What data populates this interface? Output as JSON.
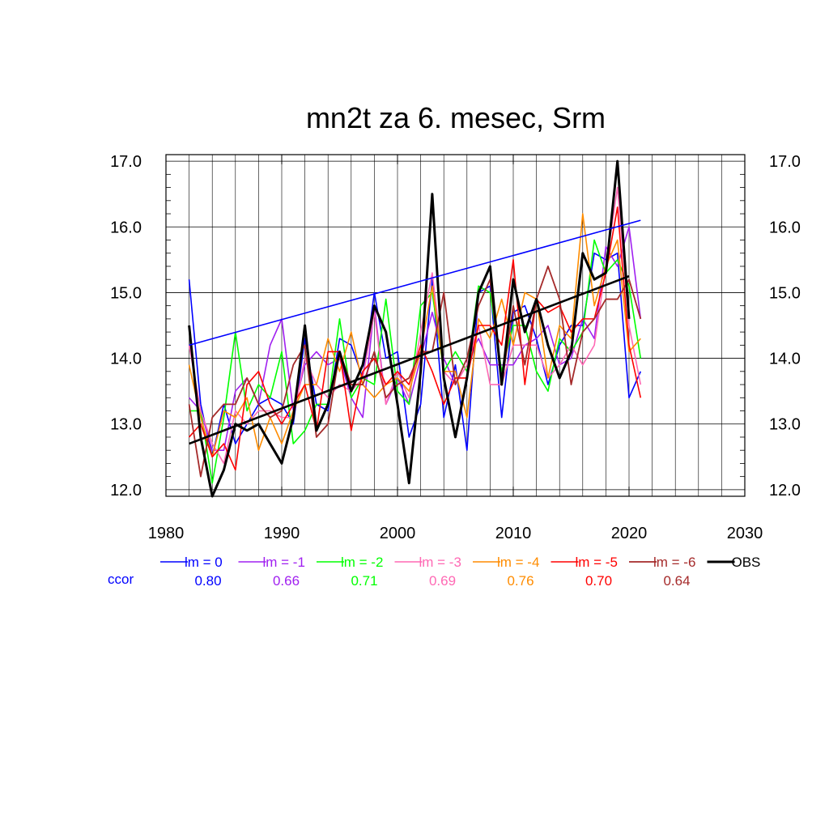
{
  "chart_data": {
    "type": "line",
    "title": "mn2t za 6. mesec, Srm",
    "xlim": [
      1980,
      2030
    ],
    "ylim": [
      11.9,
      17.1
    ],
    "xticks": [
      1980,
      1990,
      2000,
      2010,
      2020,
      2030
    ],
    "xtick_labels": [
      "1980",
      "1990",
      "2000",
      "2010",
      "2020",
      "2030"
    ],
    "yticks": [
      12,
      13,
      14,
      15,
      16,
      17
    ],
    "ytick_labels": [
      "12.0",
      "13.0",
      "14.0",
      "15.0",
      "16.0",
      "17.0"
    ],
    "grid": true,
    "x": [
      1982,
      1983,
      1984,
      1985,
      1986,
      1987,
      1988,
      1989,
      1990,
      1991,
      1992,
      1993,
      1994,
      1995,
      1996,
      1997,
      1998,
      1999,
      2000,
      2001,
      2002,
      2003,
      2004,
      2005,
      2006,
      2007,
      2008,
      2009,
      2010,
      2011,
      2012,
      2013,
      2014,
      2015,
      2016,
      2017,
      2018,
      2019,
      2020,
      2021
    ],
    "series": [
      {
        "name": "lm = 0",
        "color": "#0000ff",
        "width": 1.6,
        "values": [
          15.2,
          13.3,
          12.5,
          13.3,
          12.7,
          13.0,
          13.3,
          13.4,
          13.3,
          13.0,
          14.3,
          13.3,
          13.2,
          14.3,
          14.2,
          13.7,
          15.0,
          14.0,
          14.1,
          12.8,
          13.3,
          15.2,
          13.1,
          13.9,
          12.6,
          15.0,
          15.1,
          13.1,
          14.7,
          14.8,
          14.3,
          13.6,
          14.2,
          14.5,
          14.5,
          15.6,
          15.5,
          15.6,
          13.4,
          13.8
        ]
      },
      {
        "name": "lm = -1",
        "color": "#a020f0",
        "width": 1.6,
        "values": [
          13.4,
          13.2,
          12.6,
          12.6,
          13.5,
          13.7,
          13.3,
          14.2,
          14.6,
          13.2,
          13.9,
          14.1,
          13.9,
          14.0,
          13.4,
          13.1,
          14.8,
          13.3,
          13.7,
          13.3,
          14.0,
          14.7,
          14.0,
          13.6,
          14.0,
          14.3,
          13.9,
          13.9,
          13.9,
          14.2,
          14.3,
          14.5,
          13.9,
          14.0,
          14.6,
          14.3,
          15.7,
          15.4,
          16.0,
          14.6
        ]
      },
      {
        "name": "lm = -2",
        "color": "#00ff00",
        "width": 1.6,
        "values": [
          13.2,
          13.2,
          12.1,
          13.1,
          14.4,
          13.2,
          13.6,
          13.4,
          14.1,
          12.7,
          12.9,
          13.3,
          13.3,
          14.6,
          13.4,
          13.7,
          13.6,
          14.9,
          13.5,
          13.3,
          14.8,
          15.0,
          13.8,
          14.1,
          13.8,
          15.1,
          15.0,
          13.8,
          14.5,
          14.5,
          13.8,
          13.5,
          14.3,
          14.1,
          14.4,
          15.8,
          15.3,
          15.5,
          15.1,
          14.0
        ]
      },
      {
        "name": "lm = -3",
        "color": "#ff69b4",
        "width": 1.6,
        "values": [
          14.2,
          13.2,
          12.7,
          12.4,
          13.2,
          13.0,
          13.2,
          13.2,
          13.1,
          13.1,
          14.0,
          13.6,
          13.4,
          13.6,
          13.5,
          13.7,
          14.7,
          13.3,
          13.8,
          13.4,
          14.4,
          15.3,
          13.8,
          13.6,
          13.9,
          14.5,
          13.6,
          13.6,
          14.2,
          14.2,
          14.2,
          13.7,
          13.9,
          14.2,
          13.9,
          14.2,
          15.4,
          16.6,
          14.5,
          13.6
        ]
      },
      {
        "name": "lm = -4",
        "color": "#ff8c00",
        "width": 1.6,
        "values": [
          13.9,
          13.1,
          12.5,
          13.2,
          13.1,
          13.4,
          12.6,
          13.1,
          12.7,
          13.2,
          13.6,
          13.6,
          14.3,
          13.8,
          14.4,
          13.6,
          13.4,
          13.6,
          13.7,
          13.5,
          14.1,
          15.1,
          13.8,
          13.8,
          13.1,
          14.6,
          14.3,
          14.9,
          14.2,
          15.0,
          14.9,
          13.7,
          14.5,
          14.3,
          16.2,
          14.8,
          15.4,
          15.8,
          14.1,
          14.3
        ]
      },
      {
        "name": "lm = -5",
        "color": "#ff0000",
        "width": 1.6,
        "values": [
          12.8,
          13.0,
          12.5,
          12.7,
          12.3,
          13.6,
          13.8,
          13.3,
          13.0,
          13.3,
          13.6,
          12.9,
          14.1,
          14.1,
          12.9,
          13.8,
          14.0,
          13.6,
          13.8,
          13.6,
          14.2,
          13.8,
          13.3,
          13.7,
          13.7,
          14.5,
          14.5,
          14.2,
          15.5,
          13.6,
          14.9,
          14.7,
          14.8,
          14.4,
          14.6,
          14.6,
          15.3,
          16.3,
          14.2,
          13.4
        ]
      },
      {
        "name": "lm = -6",
        "color": "#a52a2a",
        "width": 1.8,
        "values": [
          13.3,
          12.2,
          13.1,
          13.3,
          13.3,
          13.7,
          13.3,
          13.1,
          13.2,
          13.9,
          14.2,
          12.8,
          13.0,
          14.1,
          13.6,
          13.6,
          14.1,
          13.4,
          13.6,
          13.7,
          14.1,
          14.1,
          15.0,
          13.6,
          14.0,
          14.8,
          15.2,
          13.6,
          14.8,
          13.9,
          14.9,
          15.4,
          14.9,
          13.6,
          14.4,
          14.6,
          14.9,
          14.9,
          15.2,
          14.6
        ]
      },
      {
        "name": "OBS",
        "color": "#000000",
        "width": 3,
        "values": [
          14.5,
          12.8,
          11.9,
          12.3,
          13.0,
          12.9,
          13.0,
          12.7,
          12.4,
          13.1,
          14.5,
          12.9,
          13.3,
          14.1,
          13.5,
          13.9,
          14.8,
          14.4,
          13.3,
          12.1,
          13.8,
          16.5,
          13.7,
          12.8,
          13.7,
          15.0,
          15.4,
          13.6,
          15.2,
          14.4,
          14.9,
          14.2,
          13.7,
          14.1,
          15.6,
          15.2,
          15.3,
          17.0,
          14.6,
          null
        ]
      }
    ],
    "trend_lines": [
      {
        "name": "lm = 0 trend",
        "color": "#0000ff",
        "width": 1.6,
        "x": [
          1982,
          2021
        ],
        "y": [
          14.2,
          16.1
        ]
      },
      {
        "name": "OBS trend",
        "color": "#000000",
        "width": 2.6,
        "x": [
          1982,
          2020
        ],
        "y": [
          12.7,
          15.25
        ]
      }
    ],
    "ccor_label": "ccor",
    "ccor_label_color": "#0000ff",
    "ccor_values": [
      "0.80",
      "0.66",
      "0.71",
      "0.69",
      "0.76",
      "0.70",
      "0.64"
    ],
    "legend_placement": "bottom"
  }
}
